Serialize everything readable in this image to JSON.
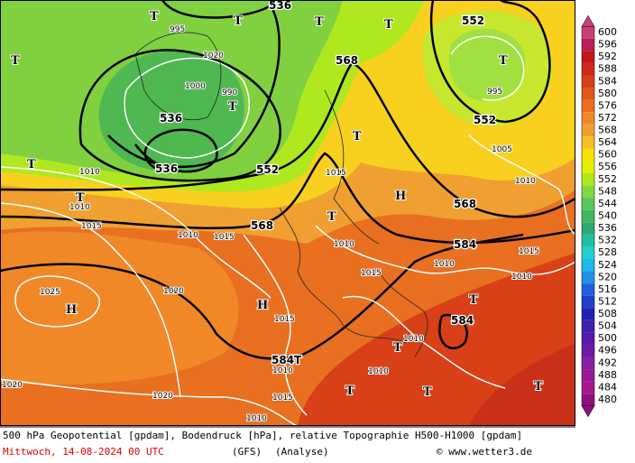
{
  "map": {
    "heights": [
      "536",
      "552",
      "552",
      "568",
      "536",
      "536",
      "552",
      "568",
      "568",
      "584",
      "584",
      "584T"
    ],
    "isobars": [
      "1010",
      "1010",
      "1015",
      "1025",
      "1020",
      "1010",
      "1015",
      "1015",
      "1010",
      "1015",
      "1020",
      "1010",
      "1020",
      "1005",
      "1010",
      "995",
      "1015",
      "1010",
      "1010",
      "1010",
      "1015",
      "1010",
      "1010",
      "1015",
      "995",
      "1020",
      "1000",
      "990"
    ],
    "highs": [
      "H",
      "H",
      "H"
    ],
    "lows": [
      "T",
      "T",
      "T",
      "T",
      "T",
      "T",
      "T",
      "T",
      "T",
      "T",
      "T",
      "T",
      "T",
      "T",
      "T",
      "T"
    ]
  },
  "colorbar": {
    "ticks": [
      600,
      596,
      592,
      588,
      584,
      580,
      576,
      572,
      568,
      564,
      560,
      556,
      552,
      548,
      544,
      540,
      536,
      532,
      528,
      524,
      520,
      516,
      512,
      508,
      504,
      500,
      496,
      492,
      488,
      484,
      480
    ],
    "colors": [
      "#c8407a",
      "#b8205a",
      "#c01818",
      "#d02818",
      "#d84018",
      "#e05818",
      "#e87020",
      "#f08828",
      "#f0a030",
      "#f8c020",
      "#f8e000",
      "#e0f000",
      "#b0e820",
      "#80d840",
      "#58c858",
      "#40b860",
      "#30a870",
      "#20c0a0",
      "#20d0d0",
      "#20b8e8",
      "#2090e8",
      "#2060e0",
      "#2040c8",
      "#2020b0",
      "#4020a8",
      "#5818a8",
      "#7018a8",
      "#8820a0",
      "#981898",
      "#a81890",
      "#901080"
    ]
  },
  "caption": {
    "line1": "500 hPa Geopotential [gpdam], Bodendruck [hPa], relative Topographie H500-H1000 [gpdam]",
    "date": "Mittwoch, 14-08-2024  00 UTC",
    "model": "(GFS)",
    "run": "(Analyse)",
    "credit": "© www.wetter3.de"
  }
}
